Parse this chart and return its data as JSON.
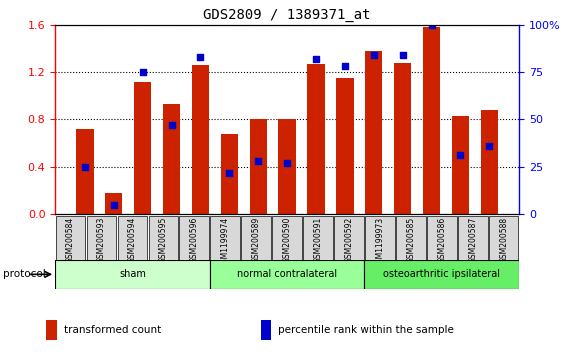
{
  "title": "GDS2809 / 1389371_at",
  "samples": [
    "GSM200584",
    "GSM200593",
    "GSM200594",
    "GSM200595",
    "GSM200596",
    "GSM1199974",
    "GSM200589",
    "GSM200590",
    "GSM200591",
    "GSM200592",
    "GSM1199973",
    "GSM200585",
    "GSM200586",
    "GSM200587",
    "GSM200588"
  ],
  "transformed_count": [
    0.72,
    0.18,
    1.12,
    0.93,
    1.26,
    0.68,
    0.8,
    0.8,
    1.27,
    1.15,
    1.38,
    1.28,
    1.58,
    0.83,
    0.88
  ],
  "percentile_rank": [
    25,
    5,
    75,
    47,
    83,
    22,
    28,
    27,
    82,
    78,
    84,
    84,
    100,
    31,
    36
  ],
  "groups": [
    {
      "name": "sham",
      "indices": [
        0,
        1,
        2,
        3,
        4
      ],
      "color": "#ccffcc"
    },
    {
      "name": "normal contralateral",
      "indices": [
        5,
        6,
        7,
        8,
        9
      ],
      "color": "#99ff99"
    },
    {
      "name": "osteoarthritic ipsilateral",
      "indices": [
        10,
        11,
        12,
        13,
        14
      ],
      "color": "#66ee66"
    }
  ],
  "bar_color": "#cc2200",
  "dot_color": "#0000cc",
  "left_ylim": [
    0,
    1.6
  ],
  "right_ylim": [
    0,
    100
  ],
  "left_yticks": [
    0,
    0.4,
    0.8,
    1.2,
    1.6
  ],
  "right_yticks": [
    0,
    25,
    50,
    75,
    100
  ],
  "plot_bg_color": "#ffffff",
  "label_box_color": "#d8d8d8",
  "legend_items": [
    {
      "label": "transformed count",
      "color": "#cc2200"
    },
    {
      "label": "percentile rank within the sample",
      "color": "#0000cc"
    }
  ]
}
